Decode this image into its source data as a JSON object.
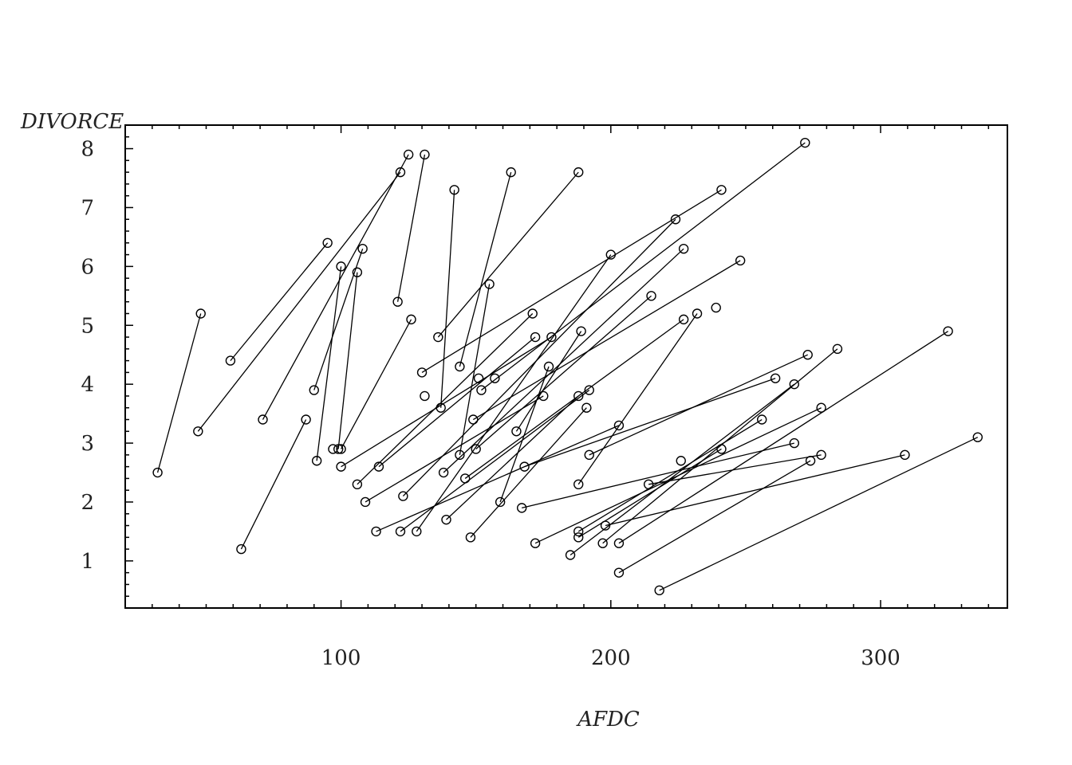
{
  "chart_data": {
    "type": "scatter",
    "title": "",
    "xlabel": "AFDC",
    "ylabel": "DIVORCE",
    "xlim": [
      20,
      347
    ],
    "ylim": [
      0.2,
      8.4
    ],
    "x_ticks": [
      100,
      200,
      300
    ],
    "x_tick_labels": [
      "100",
      "200",
      "300"
    ],
    "y_ticks": [
      1,
      2,
      3,
      4,
      5,
      6,
      7,
      8
    ],
    "y_tick_labels": [
      "1",
      "2",
      "3",
      "4",
      "5",
      "6",
      "7",
      "8"
    ],
    "grid": false,
    "legend": "none",
    "marker": "open-circle",
    "series": [
      {
        "values": [
          [
            32,
            2.5
          ],
          [
            48,
            5.2
          ]
        ]
      },
      {
        "values": [
          [
            47,
            3.2
          ],
          [
            122,
            7.6
          ]
        ]
      },
      {
        "values": [
          [
            59,
            4.4
          ],
          [
            95,
            6.4
          ]
        ]
      },
      {
        "values": [
          [
            63,
            1.2
          ],
          [
            87,
            3.4
          ]
        ]
      },
      {
        "values": [
          [
            71,
            3.4
          ],
          [
            125,
            7.9
          ]
        ]
      },
      {
        "values": [
          [
            90,
            3.9
          ],
          [
            108,
            6.3
          ]
        ]
      },
      {
        "values": [
          [
            91,
            2.7
          ],
          [
            100,
            6.0
          ]
        ]
      },
      {
        "values": [
          [
            99,
            2.9
          ],
          [
            106,
            5.9
          ]
        ]
      },
      {
        "values": [
          [
            97,
            2.9
          ]
        ]
      },
      {
        "values": [
          [
            100,
            2.6
          ],
          [
            178,
            4.8
          ]
        ]
      },
      {
        "values": [
          [
            100,
            2.9
          ],
          [
            126,
            5.1
          ]
        ]
      },
      {
        "values": [
          [
            106,
            2.3
          ],
          [
            171,
            5.2
          ]
        ]
      },
      {
        "values": [
          [
            109,
            2.0
          ],
          [
            175,
            3.8
          ]
        ]
      },
      {
        "values": [
          [
            113,
            1.5
          ],
          [
            203,
            3.3
          ]
        ]
      },
      {
        "values": [
          [
            114,
            2.6
          ],
          [
            172,
            4.8
          ]
        ]
      },
      {
        "values": [
          [
            121,
            5.4
          ],
          [
            131,
            7.9
          ]
        ]
      },
      {
        "values": [
          [
            122,
            1.5
          ],
          [
            192,
            3.9
          ]
        ]
      },
      {
        "values": [
          [
            123,
            2.1
          ],
          [
            224,
            6.8
          ]
        ]
      },
      {
        "values": [
          [
            128,
            1.5
          ],
          [
            200,
            6.2
          ]
        ]
      },
      {
        "values": [
          [
            130,
            4.2
          ],
          [
            241,
            7.3
          ]
        ]
      },
      {
        "values": [
          [
            131,
            3.8
          ]
        ]
      },
      {
        "values": [
          [
            136,
            4.8
          ],
          [
            188,
            7.6
          ]
        ]
      },
      {
        "values": [
          [
            137,
            3.6
          ],
          [
            142,
            7.3
          ]
        ]
      },
      {
        "values": [
          [
            138,
            2.5
          ],
          [
            227,
            6.3
          ]
        ]
      },
      {
        "values": [
          [
            139,
            1.7
          ],
          [
            188,
            3.8
          ]
        ]
      },
      {
        "values": [
          [
            144,
            4.3
          ],
          [
            163,
            7.6
          ]
        ]
      },
      {
        "values": [
          [
            144,
            2.8
          ],
          [
            155,
            5.7
          ]
        ]
      },
      {
        "values": [
          [
            146,
            2.4
          ],
          [
            227,
            5.1
          ]
        ]
      },
      {
        "values": [
          [
            148,
            1.4
          ],
          [
            191,
            3.6
          ]
        ]
      },
      {
        "values": [
          [
            149,
            3.4
          ],
          [
            248,
            6.1
          ]
        ]
      },
      {
        "values": [
          [
            150,
            2.9
          ],
          [
            215,
            5.5
          ]
        ]
      },
      {
        "values": [
          [
            151,
            4.1
          ]
        ]
      },
      {
        "values": [
          [
            152,
            3.9
          ],
          [
            272,
            8.1
          ]
        ]
      },
      {
        "values": [
          [
            157,
            4.1
          ]
        ]
      },
      {
        "values": [
          [
            159,
            2.0
          ],
          [
            177,
            4.3
          ]
        ]
      },
      {
        "values": [
          [
            165,
            3.2
          ],
          [
            189,
            4.9
          ]
        ]
      },
      {
        "values": [
          [
            167,
            1.9
          ],
          [
            268,
            3.0
          ]
        ]
      },
      {
        "values": [
          [
            168,
            2.6
          ],
          [
            261,
            4.1
          ]
        ]
      },
      {
        "values": [
          [
            172,
            1.3
          ],
          [
            278,
            3.6
          ]
        ]
      },
      {
        "values": [
          [
            185,
            1.1
          ],
          [
            268,
            4.0
          ]
        ]
      },
      {
        "values": [
          [
            188,
            2.3
          ],
          [
            232,
            5.2
          ]
        ]
      },
      {
        "values": [
          [
            188,
            1.5
          ],
          [
            256,
            3.4
          ]
        ]
      },
      {
        "values": [
          [
            188,
            1.4
          ],
          [
            241,
            2.9
          ]
        ]
      },
      {
        "values": [
          [
            192,
            2.8
          ],
          [
            273,
            4.5
          ]
        ]
      },
      {
        "values": [
          [
            197,
            1.3
          ],
          [
            284,
            4.6
          ]
        ]
      },
      {
        "values": [
          [
            198,
            1.6
          ],
          [
            309,
            2.8
          ]
        ]
      },
      {
        "values": [
          [
            203,
            1.3
          ],
          [
            325,
            4.9
          ]
        ]
      },
      {
        "values": [
          [
            203,
            0.8
          ],
          [
            274,
            2.7
          ]
        ]
      },
      {
        "values": [
          [
            214,
            2.3
          ],
          [
            278,
            2.8
          ]
        ]
      },
      {
        "values": [
          [
            218,
            0.5
          ],
          [
            336,
            3.1
          ]
        ]
      },
      {
        "values": [
          [
            226,
            2.7
          ]
        ]
      },
      {
        "values": [
          [
            239,
            5.3
          ]
        ]
      }
    ]
  }
}
